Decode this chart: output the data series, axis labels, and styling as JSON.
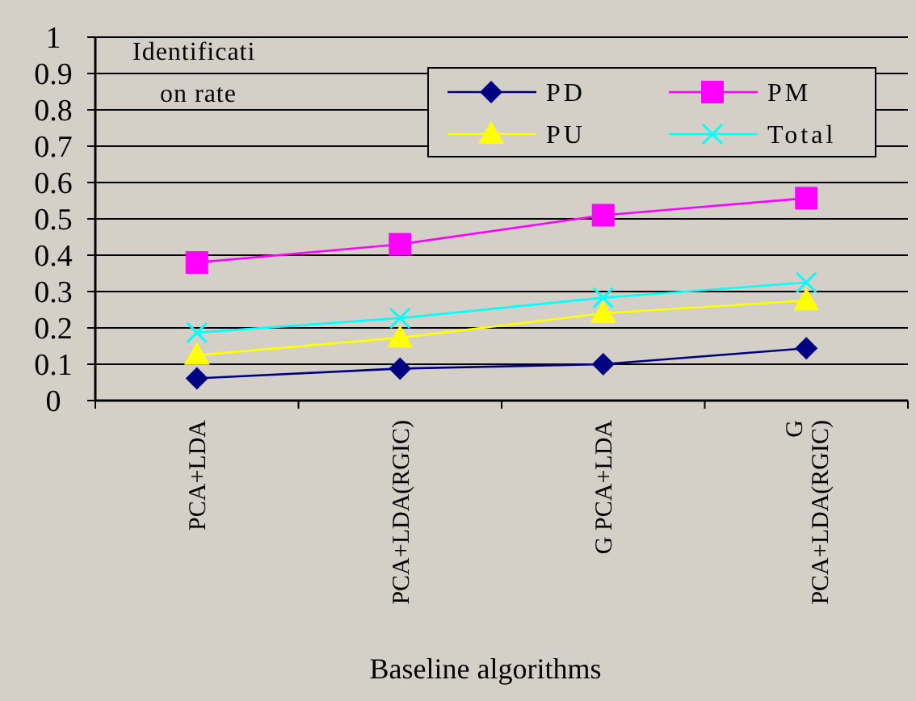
{
  "chart_data": {
    "type": "line",
    "xlabel": "Baseline algorithms",
    "ylabel": "Identification rate",
    "categories": [
      "PCA+LDA",
      "PCA+LDA(RGIC)",
      "G PCA+LDA",
      "G PCA+LDA(RGIC)"
    ],
    "ylim": [
      0,
      1
    ],
    "yticks": [
      0,
      0.1,
      0.2,
      0.3,
      0.4,
      0.5,
      0.6,
      0.7,
      0.8,
      0.9,
      1
    ],
    "grid": "y",
    "legend": "top right",
    "series": [
      {
        "name": "PD",
        "color": "#000080",
        "marker": "diamond",
        "values": [
          0.061,
          0.088,
          0.1,
          0.144
        ]
      },
      {
        "name": "PM",
        "color": "#ff00ff",
        "marker": "square",
        "values": [
          0.38,
          0.43,
          0.51,
          0.557
        ]
      },
      {
        "name": "PU",
        "color": "#ffff00",
        "marker": "triangle",
        "values": [
          0.125,
          0.173,
          0.24,
          0.275
        ]
      },
      {
        "name": "Total",
        "color": "#00ffff",
        "marker": "cross",
        "values": [
          0.187,
          0.227,
          0.283,
          0.325
        ]
      }
    ]
  }
}
